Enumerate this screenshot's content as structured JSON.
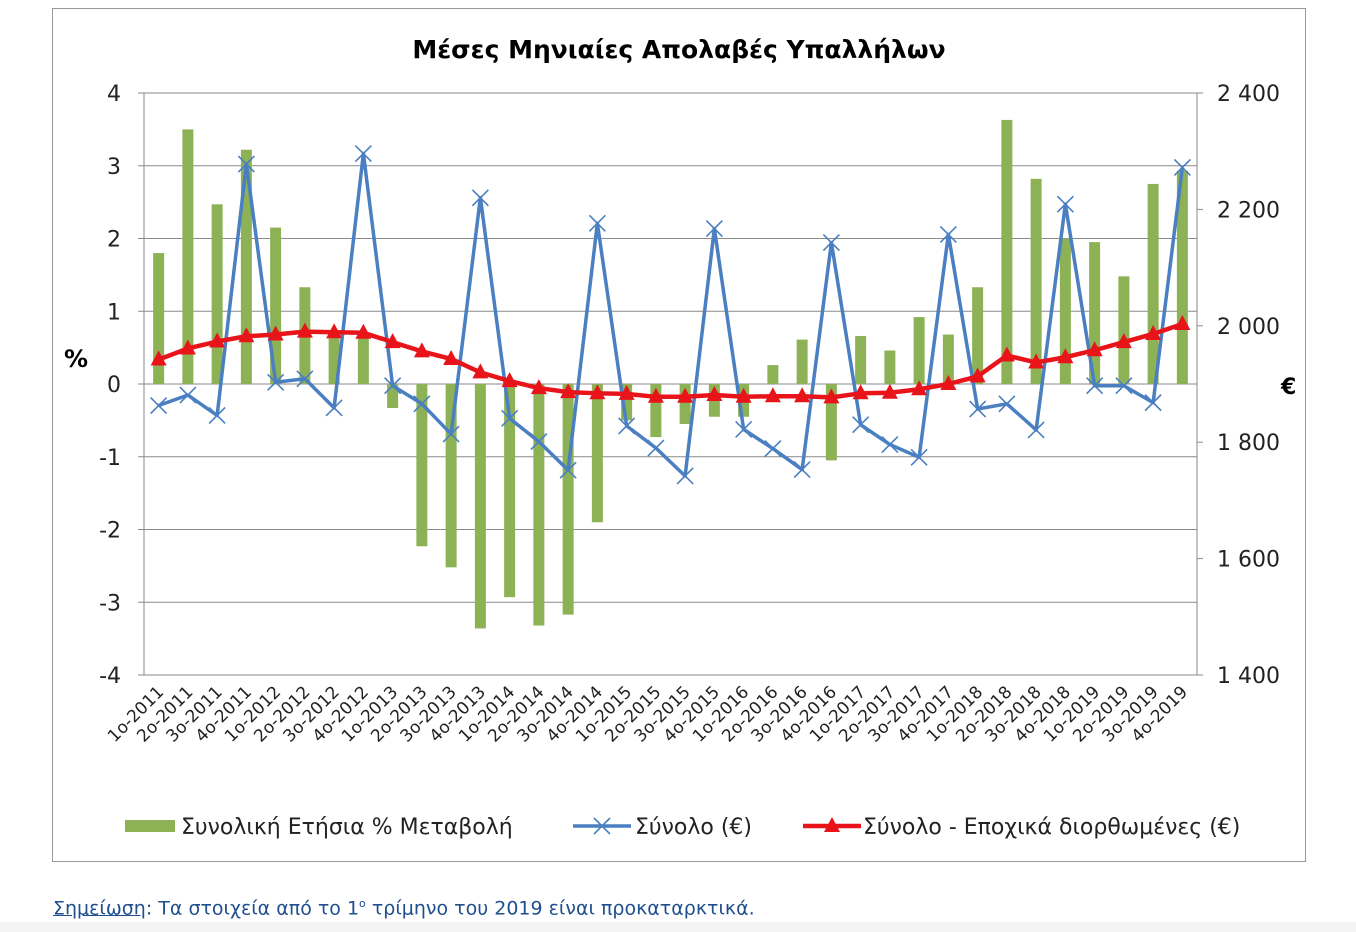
{
  "chart_data": {
    "type": "bar",
    "title": "Μέσες Μηνιαίες Απολαβές Υπαλλήλων",
    "ylabel_left": "%",
    "ylabel_right": "€",
    "ylim_left": [
      -4,
      4
    ],
    "ylim_right": [
      1400,
      2400
    ],
    "yticks_left": [
      "4",
      "3",
      "2",
      "1",
      "0",
      "-1",
      "-2",
      "-3",
      "-4"
    ],
    "yticks_right": [
      "2 400",
      "2 200",
      "2 000",
      "1 800",
      "1 600",
      "1 400"
    ],
    "grid": true,
    "legend_position": "bottom",
    "categories": [
      "1ο-2011",
      "2ο-2011",
      "3ο-2011",
      "4ο-2011",
      "1ο-2012",
      "2ο-2012",
      "3ο-2012",
      "4ο-2012",
      "1ο-2013",
      "2ο-2013",
      "3ο-2013",
      "4ο-2013",
      "1ο-2014",
      "2ο-2014",
      "3ο-2014",
      "4ο-2014",
      "1ο-2015",
      "2ο-2015",
      "3ο-2015",
      "4ο-2015",
      "1ο-2016",
      "2ο-2016",
      "3ο-2016",
      "4ο-2016",
      "1ο-2017",
      "2ο-2017",
      "3ο-2017",
      "4ο-2017",
      "1ο-2018",
      "2ο-2018",
      "3ο-2018",
      "4ο-2018",
      "1ο-2019",
      "2ο-2019",
      "3ο-2019",
      "4ο-2019"
    ],
    "series": [
      {
        "name": "Συνολική Ετήσια % Μεταβολή",
        "kind": "bar",
        "axis": "left",
        "color": "#8db255",
        "values": [
          1.8,
          3.5,
          2.47,
          3.22,
          2.15,
          1.33,
          0.7,
          0.65,
          -0.33,
          -2.23,
          -2.52,
          -3.36,
          -2.93,
          -3.32,
          -3.17,
          -1.9,
          -0.5,
          -0.73,
          -0.55,
          -0.45,
          -0.45,
          0.26,
          0.61,
          -1.05,
          0.66,
          0.46,
          0.92,
          0.68,
          1.33,
          3.63,
          2.82,
          2.0,
          1.95,
          1.48,
          2.75,
          2.93
        ]
      },
      {
        "name": "Σύνολο (€)",
        "kind": "line",
        "marker": "x",
        "axis": "right",
        "color": "#4a7fc1",
        "values": [
          1863,
          1881,
          1846,
          2278,
          1903,
          1909,
          1859,
          2296,
          1897,
          1866,
          1814,
          2220,
          1841,
          1801,
          1752,
          2176,
          1828,
          1790,
          1742,
          2167,
          1822,
          1789,
          1753,
          2143,
          1830,
          1796,
          1774,
          2157,
          1857,
          1866,
          1821,
          2209,
          1897,
          1897,
          1868,
          2272
        ]
      },
      {
        "name": "Σύνολο - Εποχικά διορθωμένες (€)",
        "kind": "line",
        "marker": "triangle",
        "axis": "right",
        "color": "#e8141a",
        "values": [
          1942,
          1961,
          1973,
          1982,
          1985,
          1990,
          1989,
          1988,
          1972,
          1956,
          1943,
          1920,
          1905,
          1893,
          1886,
          1884,
          1883,
          1878,
          1878,
          1881,
          1878,
          1879,
          1879,
          1877,
          1884,
          1885,
          1891,
          1900,
          1913,
          1949,
          1937,
          1946,
          1958,
          1972,
          1986,
          2003
        ]
      }
    ]
  },
  "note": {
    "link_text": "Σημείωση",
    "text_before_sup": ": Τα στοιχεία από το 1",
    "sup": "ο",
    "text_after_sup": " τρίμηνο του 2019 είναι προκαταρκτικά."
  }
}
